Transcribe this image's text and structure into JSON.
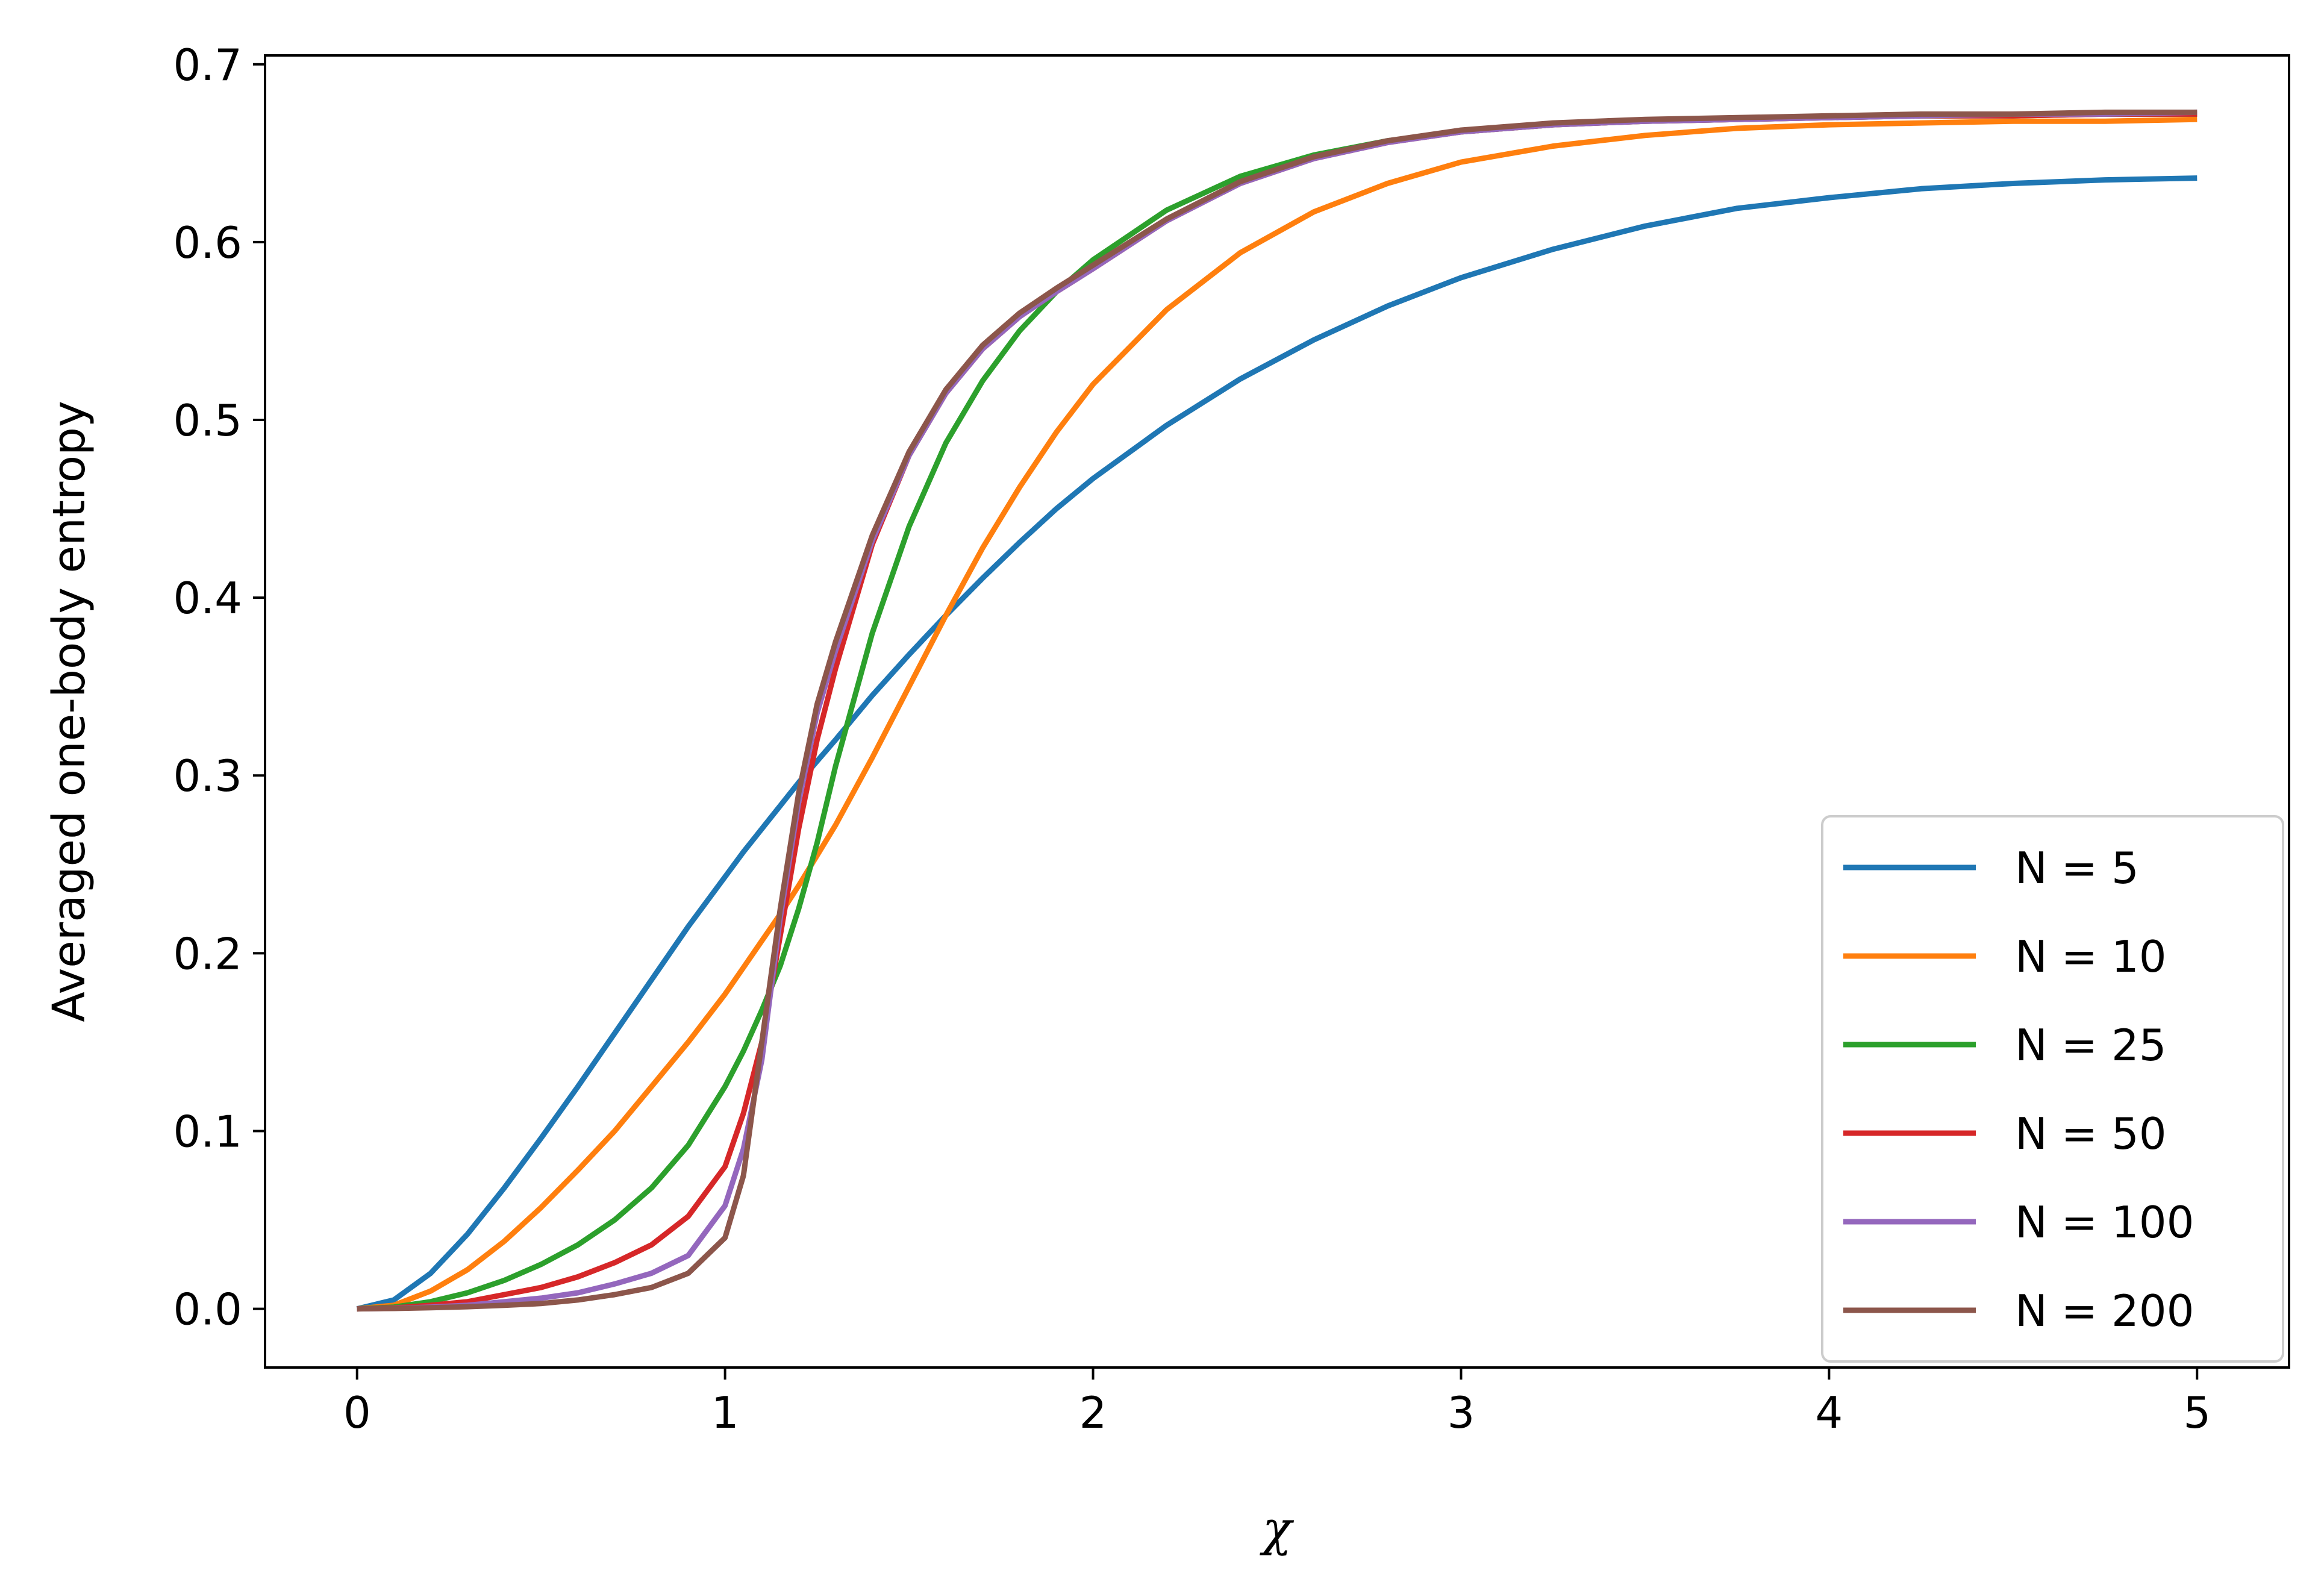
{
  "chart_data": {
    "type": "line",
    "xlabel": "χ",
    "ylabel": "Averaged one-body entropy",
    "xlim": [
      -0.25,
      5.25
    ],
    "ylim": [
      -0.033,
      0.705
    ],
    "xticks": [
      0,
      1,
      2,
      3,
      4,
      5
    ],
    "xtick_labels": [
      "0",
      "1",
      "2",
      "3",
      "4",
      "5"
    ],
    "yticks": [
      0.0,
      0.1,
      0.2,
      0.3,
      0.4,
      0.5,
      0.6,
      0.7
    ],
    "ytick_labels": [
      "0.0",
      "0.1",
      "0.2",
      "0.3",
      "0.4",
      "0.5",
      "0.6",
      "0.7"
    ],
    "grid": false,
    "legend_position": "bottom-right",
    "x": [
      0,
      0.1,
      0.2,
      0.3,
      0.4,
      0.5,
      0.6,
      0.7,
      0.8,
      0.9,
      1.0,
      1.05,
      1.1,
      1.15,
      1.2,
      1.25,
      1.3,
      1.4,
      1.5,
      1.6,
      1.7,
      1.8,
      1.9,
      2.0,
      2.2,
      2.4,
      2.6,
      2.8,
      3.0,
      3.25,
      3.5,
      3.75,
      4.0,
      4.25,
      4.5,
      4.75,
      5.0
    ],
    "series": [
      {
        "name": "N = 5",
        "color": "#1f77b4",
        "values": [
          0.0,
          0.005,
          0.02,
          0.042,
          0.068,
          0.096,
          0.125,
          0.155,
          0.185,
          0.215,
          0.243,
          0.257,
          0.27,
          0.283,
          0.296,
          0.308,
          0.32,
          0.345,
          0.368,
          0.39,
          0.411,
          0.431,
          0.45,
          0.467,
          0.497,
          0.523,
          0.545,
          0.564,
          0.58,
          0.596,
          0.609,
          0.619,
          0.625,
          0.63,
          0.633,
          0.635,
          0.636
        ]
      },
      {
        "name": "N = 10",
        "color": "#ff7f0e",
        "values": [
          0.0,
          0.002,
          0.01,
          0.022,
          0.038,
          0.057,
          0.078,
          0.1,
          0.125,
          0.15,
          0.177,
          0.192,
          0.207,
          0.222,
          0.238,
          0.255,
          0.272,
          0.31,
          0.35,
          0.39,
          0.428,
          0.462,
          0.493,
          0.52,
          0.562,
          0.594,
          0.617,
          0.633,
          0.645,
          0.654,
          0.66,
          0.664,
          0.666,
          0.667,
          0.668,
          0.668,
          0.669
        ]
      },
      {
        "name": "N = 25",
        "color": "#2ca02c",
        "values": [
          0.0,
          0.001,
          0.004,
          0.009,
          0.016,
          0.025,
          0.036,
          0.05,
          0.068,
          0.092,
          0.125,
          0.145,
          0.168,
          0.193,
          0.225,
          0.262,
          0.305,
          0.38,
          0.44,
          0.487,
          0.522,
          0.55,
          0.572,
          0.59,
          0.618,
          0.637,
          0.649,
          0.657,
          0.662,
          0.666,
          0.668,
          0.669,
          0.67,
          0.671,
          0.671,
          0.672,
          0.672
        ]
      },
      {
        "name": "N = 50",
        "color": "#d62728",
        "values": [
          0.0,
          0.0005,
          0.002,
          0.004,
          0.008,
          0.012,
          0.018,
          0.026,
          0.036,
          0.052,
          0.08,
          0.11,
          0.15,
          0.21,
          0.27,
          0.32,
          0.36,
          0.43,
          0.48,
          0.515,
          0.54,
          0.558,
          0.572,
          0.585,
          0.612,
          0.633,
          0.647,
          0.656,
          0.662,
          0.666,
          0.668,
          0.669,
          0.67,
          0.671,
          0.671,
          0.672,
          0.672
        ]
      },
      {
        "name": "N = 100",
        "color": "#9467bd",
        "values": [
          0.0,
          0.0003,
          0.001,
          0.002,
          0.004,
          0.006,
          0.009,
          0.014,
          0.02,
          0.03,
          0.058,
          0.09,
          0.14,
          0.22,
          0.285,
          0.335,
          0.37,
          0.432,
          0.48,
          0.515,
          0.54,
          0.558,
          0.572,
          0.585,
          0.612,
          0.633,
          0.647,
          0.656,
          0.662,
          0.666,
          0.668,
          0.669,
          0.67,
          0.671,
          0.672,
          0.672,
          0.673
        ]
      },
      {
        "name": "N = 200",
        "color": "#8c564b",
        "values": [
          0.0,
          0.0002,
          0.0006,
          0.0012,
          0.002,
          0.003,
          0.005,
          0.008,
          0.012,
          0.02,
          0.04,
          0.075,
          0.15,
          0.225,
          0.29,
          0.34,
          0.375,
          0.435,
          0.482,
          0.517,
          0.542,
          0.56,
          0.574,
          0.587,
          0.613,
          0.634,
          0.648,
          0.657,
          0.663,
          0.667,
          0.669,
          0.67,
          0.671,
          0.672,
          0.672,
          0.673,
          0.673
        ]
      }
    ]
  }
}
